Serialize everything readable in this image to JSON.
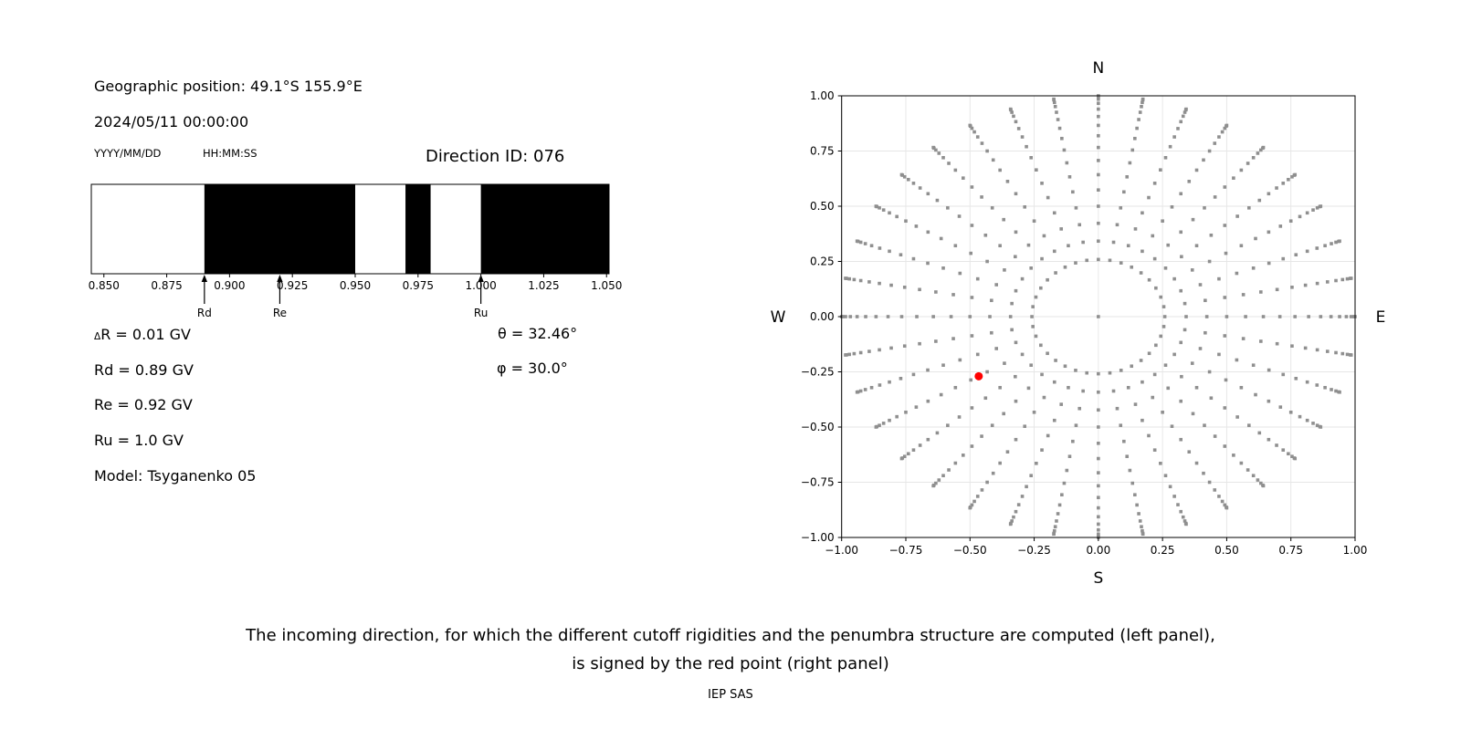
{
  "header": {
    "geo_position": "Geographic position: 49.1°S 155.9°E",
    "datetime": "2024/05/11 00:00:00",
    "date_format_hint": "YYYY/MM/DD",
    "time_format_hint": "HH:MM:SS",
    "direction_id": "Direction ID: 076"
  },
  "readouts": [
    {
      "small_prefix": "Δ",
      "text": "R = 0.01 GV"
    },
    {
      "small_prefix": "",
      "text": "Rd = 0.89 GV"
    },
    {
      "small_prefix": "",
      "text": "Re = 0.92 GV"
    },
    {
      "small_prefix": "",
      "text": "Ru = 1.0 GV"
    },
    {
      "small_prefix": "",
      "text": "Model: Tsyganenko 05"
    }
  ],
  "angles": {
    "theta": "θ = 32.46°",
    "phi": "φ = 30.0°"
  },
  "caption": {
    "line1": "The incoming direction, for which the different cutoff rigidities and the penumbra structure are computed (left panel),",
    "line2": "is signed by the red point (right panel)",
    "credit": "IEP SAS"
  },
  "chart_data": [
    {
      "type": "bar",
      "name": "penumbra-structure",
      "xlim": [
        0.845,
        1.051
      ],
      "xticks": [
        0.85,
        0.875,
        0.9,
        0.925,
        0.95,
        0.975,
        1.0,
        1.025,
        1.05
      ],
      "xtick_labels": [
        "0.850",
        "0.875",
        "0.900",
        "0.925",
        "0.950",
        "0.975",
        "1.000",
        "1.025",
        "1.050"
      ],
      "forbidden_bands_gv": [
        [
          0.89,
          0.95
        ],
        [
          0.97,
          0.98
        ],
        [
          1.0,
          1.051
        ]
      ],
      "allowed_color": "#ffffff",
      "forbidden_color": "#000000",
      "arrows": [
        {
          "label": "Rd",
          "x": 0.89
        },
        {
          "label": "Re",
          "x": 0.92
        },
        {
          "label": "Ru",
          "x": 1.0
        }
      ]
    },
    {
      "type": "scatter",
      "name": "incoming-direction-map",
      "xlim": [
        -1,
        1
      ],
      "ylim": [
        -1,
        1
      ],
      "xticks": [
        -1.0,
        -0.75,
        -0.5,
        -0.25,
        0.0,
        0.25,
        0.5,
        0.75,
        1.0
      ],
      "yticks": [
        -1.0,
        -0.75,
        -0.5,
        -0.25,
        0.0,
        0.25,
        0.5,
        0.75,
        1.0
      ],
      "xtick_labels": [
        "−1.00",
        "−0.75",
        "−0.50",
        "−0.25",
        "0.00",
        "0.25",
        "0.50",
        "0.75",
        "1.00"
      ],
      "ytick_labels": [
        "−1.00",
        "−0.75",
        "−0.50",
        "−0.25",
        "0.00",
        "0.25",
        "0.50",
        "0.75",
        "1.00"
      ],
      "grid": true,
      "grid_color": "#e6e6e6",
      "compass": {
        "top": "N",
        "bottom": "S",
        "left": "W",
        "right": "E"
      },
      "dot_color": "#8f8f8f",
      "dots_rule": {
        "azimuth_deg": {
          "start": 0,
          "stop": 350,
          "step": 10
        },
        "zenith_deg": {
          "start": 15,
          "stop": 90,
          "step": 5
        },
        "radius": "sin(zenith)",
        "center_dot": true
      },
      "red_point": {
        "x": -0.466,
        "y": -0.27,
        "color": "#ff0000"
      }
    }
  ]
}
